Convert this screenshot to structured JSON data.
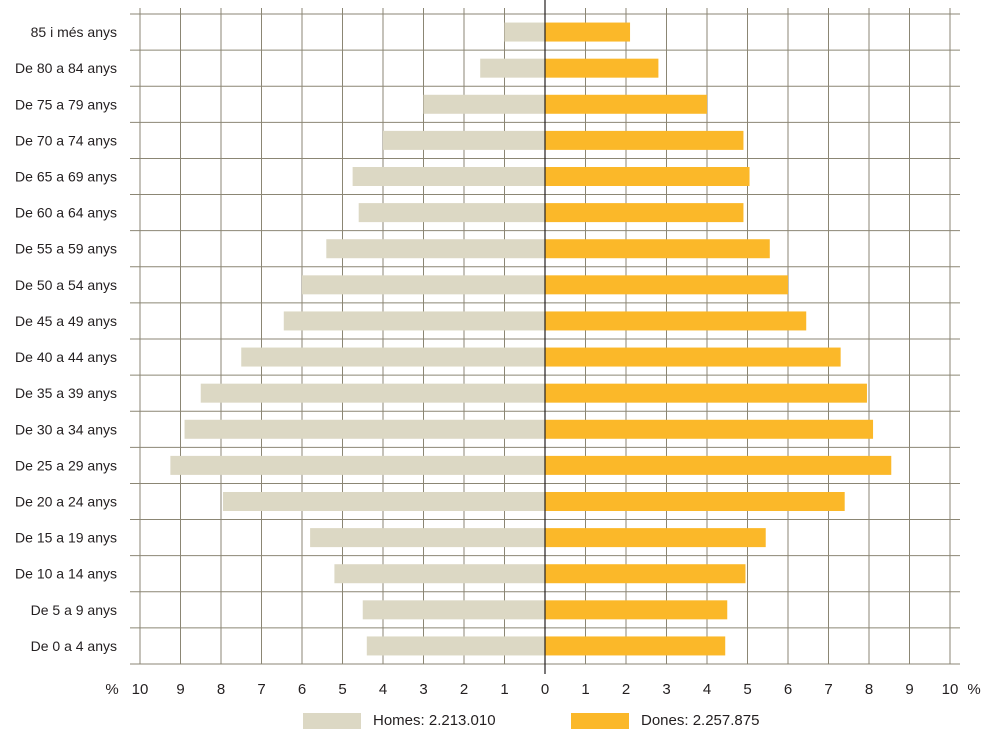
{
  "chart_data": {
    "type": "bar",
    "orientation": "horizontal",
    "categories": [
      "85 i més anys",
      "De 80 a 84 anys",
      "De 75 a 79 anys",
      "De 70 a 74 anys",
      "De 65 a 69 anys",
      "De 60 a 64 anys",
      "De 55 a 59 anys",
      "De 50 a 54 anys",
      "De 45 a 49 anys",
      "De 40 a 44 anys",
      "De 35 a 39 anys",
      "De 30 a 34 anys",
      "De 25 a 29 anys",
      "De 20 a 24 anys",
      "De 15 a 19 anys",
      "De 10 a 14 anys",
      "De 5 a 9 anys",
      "De 0 a 4 anys"
    ],
    "series": [
      {
        "name": "Homes: 2.213.010",
        "color": "#dcd8c4",
        "side": "left",
        "values": [
          1.0,
          1.6,
          3.0,
          4.0,
          4.75,
          4.6,
          5.4,
          6.0,
          6.45,
          7.5,
          8.5,
          8.9,
          9.25,
          7.95,
          5.8,
          5.2,
          4.5,
          4.4
        ]
      },
      {
        "name": "Dones: 2.257.875",
        "color": "#fbb829",
        "side": "right",
        "values": [
          2.1,
          2.8,
          4.0,
          4.9,
          5.05,
          4.9,
          5.55,
          6.0,
          6.45,
          7.3,
          7.95,
          8.1,
          8.55,
          7.4,
          5.45,
          4.95,
          4.5,
          4.45
        ]
      }
    ],
    "x_ticks": [
      "10",
      "9",
      "8",
      "7",
      "6",
      "5",
      "4",
      "3",
      "2",
      "1",
      "0",
      "1",
      "2",
      "3",
      "4",
      "5",
      "6",
      "7",
      "8",
      "9",
      "10"
    ],
    "xlim": [
      -10,
      10
    ],
    "x_unit_left": "%",
    "x_unit_right": "%",
    "grid": true,
    "legend_placement": "bottom"
  }
}
